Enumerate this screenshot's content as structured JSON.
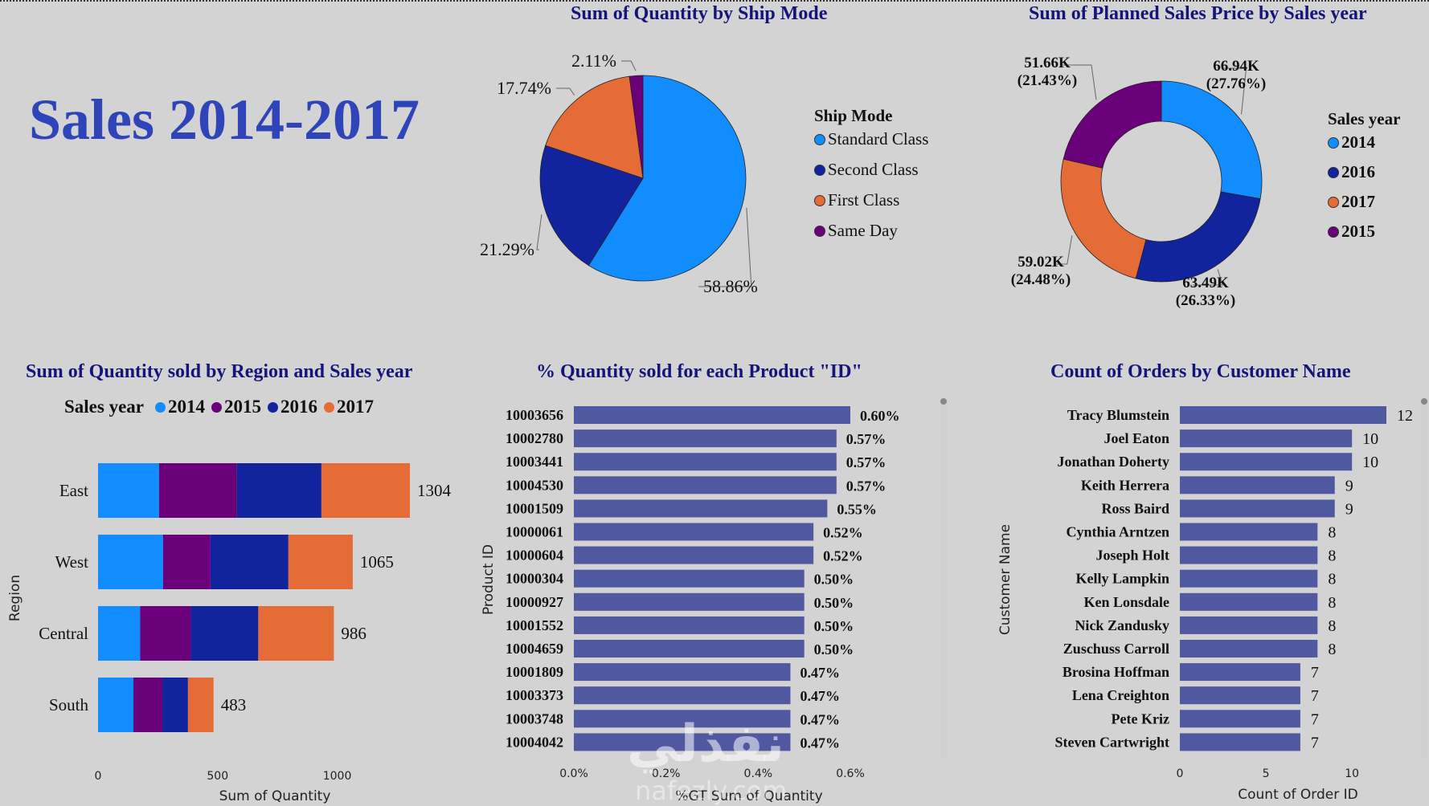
{
  "page": {
    "title": "Sales 2014-2017"
  },
  "colors": {
    "y2014": "#118dff",
    "y2015": "#6b007b",
    "y2016": "#12239e",
    "y2017": "#e66c37",
    "bar": "#5059a0",
    "title": "#14147a",
    "heading": "#2e44b8"
  },
  "chart_data": [
    {
      "id": "ship_mode_pie",
      "type": "pie",
      "title": "Sum of Quantity by Ship Mode",
      "legend_title": "Ship Mode",
      "legend_position": "right",
      "slices": [
        {
          "label": "Standard Class",
          "value": 58.86,
          "display": "58.86%",
          "color": "#118dff"
        },
        {
          "label": "Second Class",
          "value": 21.29,
          "display": "21.29%",
          "color": "#12239e"
        },
        {
          "label": "First Class",
          "value": 17.74,
          "display": "17.74%",
          "color": "#e66c37"
        },
        {
          "label": "Same Day",
          "value": 2.11,
          "display": "2.11%",
          "color": "#6b007b"
        }
      ]
    },
    {
      "id": "planned_sales_donut",
      "type": "pie",
      "subtype": "donut",
      "title": "Sum of Planned Sales Price by Sales year",
      "legend_title": "Sales year",
      "legend_position": "right",
      "slices": [
        {
          "label": "2014",
          "value": 66.94,
          "display": "66.94K",
          "pct": "(27.76%)",
          "color": "#118dff"
        },
        {
          "label": "2016",
          "value": 63.49,
          "display": "63.49K",
          "pct": "(26.33%)",
          "color": "#12239e"
        },
        {
          "label": "2017",
          "value": 59.02,
          "display": "59.02K",
          "pct": "(24.48%)",
          "color": "#e66c37"
        },
        {
          "label": "2015",
          "value": 51.66,
          "display": "51.66K",
          "pct": "(21.43%)",
          "color": "#6b007b"
        }
      ]
    },
    {
      "id": "region_stacked_bar",
      "type": "bar",
      "orientation": "horizontal",
      "stacked": true,
      "title": "Sum of Quantity sold by Region and Sales year",
      "legend_title": "Sales year",
      "legend_position": "top",
      "categories": [
        "East",
        "West",
        "Central",
        "South"
      ],
      "series": [
        {
          "name": "2014",
          "color": "#118dff",
          "values": [
            255,
            272,
            176,
            148
          ]
        },
        {
          "name": "2015",
          "color": "#6b007b",
          "values": [
            326,
            198,
            212,
            121
          ]
        },
        {
          "name": "2016",
          "color": "#12239e",
          "values": [
            353,
            326,
            282,
            107
          ]
        },
        {
          "name": "2017",
          "color": "#e66c37",
          "values": [
            370,
            269,
            316,
            107
          ]
        }
      ],
      "totals": [
        "1304",
        "1065",
        "986",
        "483"
      ],
      "xlabel": "Sum of Quantity",
      "ylabel": "Region",
      "xlim": [
        0,
        1300
      ],
      "xticks": [
        "0",
        "500",
        "1000"
      ],
      "xtick_values": [
        0,
        500,
        1000
      ]
    },
    {
      "id": "product_pct_bar",
      "type": "bar",
      "orientation": "horizontal",
      "title": "% Quantity sold for each Product \"ID\"",
      "categories": [
        "10003656",
        "10002780",
        "10003441",
        "10004530",
        "10001509",
        "10000061",
        "10000604",
        "10000304",
        "10000927",
        "10001552",
        "10004659",
        "10001809",
        "10003373",
        "10003748",
        "10004042"
      ],
      "values": [
        0.6,
        0.57,
        0.57,
        0.57,
        0.55,
        0.52,
        0.52,
        0.5,
        0.5,
        0.5,
        0.5,
        0.47,
        0.47,
        0.47,
        0.47
      ],
      "labels": [
        "0.60%",
        "0.57%",
        "0.57%",
        "0.57%",
        "0.55%",
        "0.52%",
        "0.52%",
        "0.50%",
        "0.50%",
        "0.50%",
        "0.50%",
        "0.47%",
        "0.47%",
        "0.47%",
        "0.47%"
      ],
      "xlabel": "%GT Sum of Quantity",
      "ylabel": "Product ID",
      "xlim": [
        0,
        0.6
      ],
      "xticks": [
        "0.0%",
        "0.2%",
        "0.4%",
        "0.6%"
      ],
      "xtick_values": [
        0,
        0.2,
        0.4,
        0.6
      ],
      "color": "#5059a0"
    },
    {
      "id": "customer_orders_bar",
      "type": "bar",
      "orientation": "horizontal",
      "title": "Count of Orders by Customer Name",
      "categories": [
        "Tracy Blumstein",
        "Joel Eaton",
        "Jonathan Doherty",
        "Keith Herrera",
        "Ross Baird",
        "Cynthia Arntzen",
        "Joseph Holt",
        "Kelly Lampkin",
        "Ken Lonsdale",
        "Nick Zandusky",
        "Zuschuss Carroll",
        "Brosina Hoffman",
        "Lena Creighton",
        "Pete Kriz",
        "Steven Cartwright"
      ],
      "values": [
        12,
        10,
        10,
        9,
        9,
        8,
        8,
        8,
        8,
        8,
        8,
        7,
        7,
        7,
        7
      ],
      "xlabel": "Count of Order ID",
      "ylabel": "Customer Name",
      "xlim": [
        0,
        12
      ],
      "xticks": [
        "0",
        "5",
        "10"
      ],
      "xtick_values": [
        0,
        5,
        10
      ],
      "color": "#5059a0"
    }
  ],
  "watermark": {
    "text": "نفذلي",
    "sub": "nafezly.com"
  }
}
